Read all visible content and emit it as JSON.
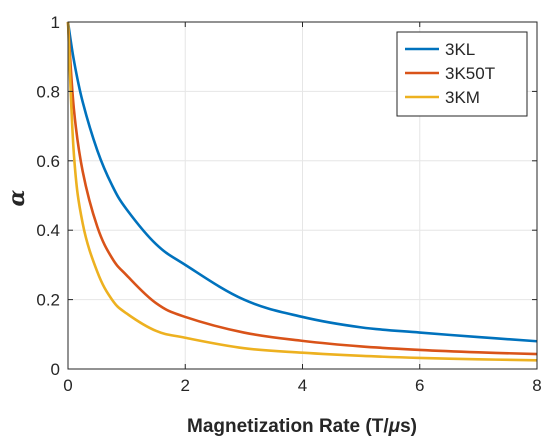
{
  "chart_data": {
    "type": "line",
    "title": "",
    "xlabel": "Magnetization Rate (T/",
    "xlabel_symbol": "μ",
    "xlabel_suffix": "s)",
    "ylabel": "α",
    "xlim": [
      0,
      8
    ],
    "ylim": [
      0,
      1
    ],
    "xticks": [
      0,
      2,
      4,
      6,
      8
    ],
    "yticks": [
      0,
      0.2,
      0.4,
      0.6,
      0.8,
      1
    ],
    "xtick_labels": [
      "0",
      "2",
      "4",
      "6",
      "8"
    ],
    "ytick_labels": [
      "0",
      "0.2",
      "0.4",
      "0.6",
      "0.8",
      "1"
    ],
    "grid": true,
    "legend_position": "top-right",
    "series": [
      {
        "name": "3KL",
        "color": "#0072BD",
        "x": [
          0,
          0.1,
          0.25,
          0.5,
          0.75,
          1,
          1.5,
          2,
          3,
          4,
          5,
          6,
          7,
          8
        ],
        "y": [
          1,
          0.89,
          0.77,
          0.63,
          0.53,
          0.46,
          0.36,
          0.3,
          0.2,
          0.15,
          0.12,
          0.105,
          0.092,
          0.08
        ]
      },
      {
        "name": "3K50T",
        "color": "#D95319",
        "x": [
          0,
          0.1,
          0.25,
          0.5,
          0.75,
          1,
          1.5,
          2,
          3,
          4,
          5,
          6,
          7,
          8
        ],
        "y": [
          1,
          0.75,
          0.57,
          0.41,
          0.32,
          0.27,
          0.19,
          0.15,
          0.105,
          0.081,
          0.065,
          0.055,
          0.048,
          0.043
        ]
      },
      {
        "name": "3KM",
        "color": "#EDB120",
        "x": [
          0,
          0.1,
          0.25,
          0.5,
          0.75,
          1,
          1.5,
          2,
          3,
          4,
          5,
          6,
          7,
          8
        ],
        "y": [
          1,
          0.62,
          0.42,
          0.28,
          0.2,
          0.16,
          0.11,
          0.09,
          0.06,
          0.047,
          0.038,
          0.032,
          0.028,
          0.025
        ]
      }
    ]
  }
}
